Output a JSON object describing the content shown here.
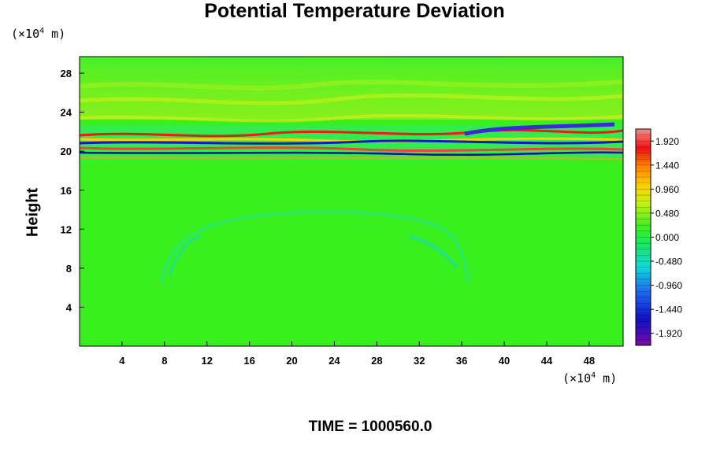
{
  "chart_data": {
    "type": "heatmap",
    "title": "Potential Temperature Deviation",
    "ylabel": "Height",
    "x_unit": {
      "prefix": "(×10",
      "exp": "4",
      "suffix": " m)"
    },
    "y_unit": {
      "prefix": "(×10",
      "exp": "4",
      "suffix": " m)"
    },
    "x_ticks": [
      "4",
      "8",
      "12",
      "16",
      "20",
      "24",
      "28",
      "32",
      "36",
      "40",
      "44",
      "48"
    ],
    "y_ticks": [
      "4",
      "8",
      "12",
      "16",
      "20",
      "24",
      "28"
    ],
    "xlim": [
      0,
      51.2
    ],
    "ylim": [
      0,
      29.7
    ],
    "colorbar": {
      "labels": [
        "1.920",
        "1.440",
        "0.960",
        "0.480",
        "0.000",
        "-0.480",
        "-0.960",
        "-1.440",
        "-1.920"
      ],
      "range": [
        -2.16,
        2.16
      ]
    },
    "footer": "TIME = 1000560.0"
  }
}
